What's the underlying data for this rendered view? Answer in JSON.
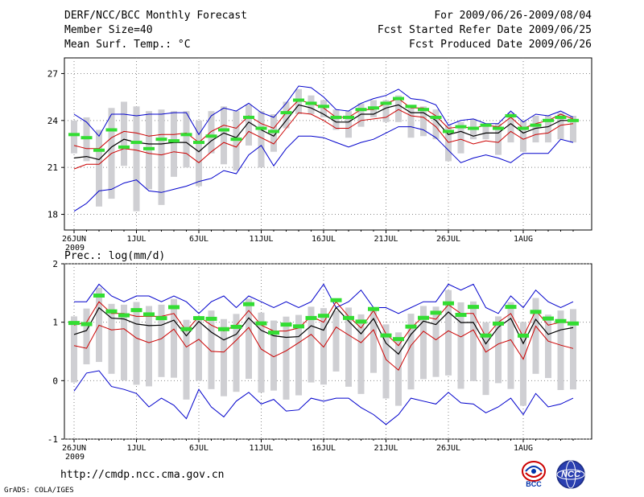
{
  "header": {
    "title": "DERF/NCC/BCC Monthly Forecast",
    "member_size": "Member Size=40",
    "variable_temp": "Mean Surf. Temp.: °C",
    "period": "For 2009/06/26-2009/08/04",
    "started": "Fcst Started Refer Date 2009/06/25",
    "produced": "Fcst Produced Date 2009/06/26"
  },
  "footer": {
    "url": "http://cmdp.ncc.cma.gov.cn",
    "credit": "GrADS: COLA/IGES",
    "logo_left": "BCC",
    "logo_right": "NCC"
  },
  "colors": {
    "ensemble_mean": "#000000",
    "spread_band": "#cc0000",
    "extremes": "#0000cc",
    "box": "#cfcfd3",
    "green_marker": "#33dd33"
  },
  "chart_data": [
    {
      "type": "line",
      "title": "Mean Surf. Temp.: °C",
      "x_ticks": [
        "26JUN",
        "1JUL",
        "6JUL",
        "11JUL",
        "16JUL",
        "21JUL",
        "26JUL",
        "1AUG"
      ],
      "x_tick_index": [
        0,
        5,
        10,
        15,
        20,
        25,
        30,
        36
      ],
      "x_sublabel": "2009",
      "ylim": [
        17,
        28
      ],
      "y_ticks": [
        18,
        21,
        24,
        27
      ],
      "series": [
        {
          "name": "max",
          "values": [
            18.2,
            18.7,
            19.5,
            19.6,
            20.0,
            20.2,
            19.5,
            19.4,
            19.6,
            19.8,
            20.1,
            20.3,
            20.8,
            20.6,
            21.8,
            22.4,
            21.1,
            22.2,
            23.0,
            23.0,
            22.9,
            22.6,
            22.3,
            22.6,
            22.8,
            23.2,
            23.6,
            23.6,
            23.4,
            22.9,
            22.1,
            21.3,
            21.6,
            21.8,
            21.6,
            21.3,
            21.9,
            21.9,
            21.9,
            22.8,
            22.6
          ]
        },
        {
          "name": "min",
          "values": [
            24.4,
            23.9,
            23.0,
            24.4,
            24.4,
            24.3,
            24.4,
            24.4,
            24.5,
            24.5,
            23.1,
            24.3,
            24.8,
            24.6,
            25.1,
            24.5,
            24.2,
            25.1,
            26.2,
            26.1,
            25.5,
            24.7,
            24.6,
            25.1,
            25.4,
            25.6,
            26.0,
            25.4,
            25.3,
            25.0,
            23.7,
            24.0,
            24.1,
            23.8,
            23.8,
            24.6,
            23.9,
            24.4,
            24.3,
            24.6,
            24.2
          ]
        }
      ],
      "band_upper": [
        22.4,
        22.2,
        22.2,
        22.9,
        23.3,
        23.2,
        23.0,
        23.1,
        23.1,
        23.2,
        22.6,
        23.3,
        23.7,
        23.5,
        24.3,
        23.8,
        23.5,
        24.5,
        25.3,
        25.1,
        24.8,
        24.2,
        24.2,
        24.7,
        24.7,
        25.1,
        25.4,
        24.8,
        24.8,
        24.3,
        23.5,
        23.6,
        23.5,
        23.7,
        23.6,
        24.2,
        23.5,
        23.8,
        24.0,
        24.4,
        24.1
      ],
      "band_lower": [
        20.9,
        21.2,
        21.2,
        21.9,
        22.2,
        22.1,
        21.9,
        21.8,
        22.0,
        21.9,
        21.3,
        22.0,
        22.6,
        22.3,
        23.3,
        22.9,
        22.5,
        23.5,
        24.5,
        24.4,
        24.0,
        23.5,
        23.5,
        24.0,
        24.1,
        24.2,
        24.7,
        24.3,
        24.2,
        23.6,
        22.6,
        22.8,
        22.5,
        22.7,
        22.6,
        23.3,
        22.8,
        23.1,
        23.2,
        23.7,
        23.8
      ],
      "mean": [
        21.6,
        21.7,
        21.5,
        22.3,
        22.8,
        22.6,
        22.5,
        22.5,
        22.6,
        22.6,
        22.0,
        22.7,
        23.2,
        22.9,
        23.9,
        23.4,
        23.0,
        24.0,
        25.0,
        24.8,
        24.4,
        23.9,
        23.9,
        24.4,
        24.4,
        24.8,
        25.0,
        24.5,
        24.5,
        24.0,
        23.1,
        23.3,
        23.0,
        23.2,
        23.2,
        23.8,
        23.2,
        23.5,
        23.6,
        24.0,
        24.0
      ],
      "box_top": [
        24.0,
        24.2,
        23.4,
        24.8,
        25.2,
        24.9,
        24.6,
        24.7,
        24.6,
        24.6,
        24.0,
        24.6,
        24.9,
        24.6,
        25.0,
        24.6,
        24.4,
        25.2,
        26.0,
        25.6,
        25.3,
        24.7,
        24.6,
        25.1,
        25.3,
        25.3,
        25.6,
        24.9,
        24.9,
        24.7,
        23.7,
        23.9,
        24.1,
        23.8,
        23.8,
        24.5,
        24.0,
        24.3,
        24.3,
        24.5,
        24.3
      ],
      "box_bottom": [
        21.9,
        21.4,
        18.5,
        19.0,
        21.1,
        18.2,
        19.6,
        18.6,
        20.4,
        21.0,
        19.8,
        21.9,
        21.2,
        20.8,
        22.4,
        21.0,
        22.0,
        23.5,
        24.4,
        24.4,
        24.2,
        23.4,
        22.9,
        23.6,
        24.2,
        23.9,
        23.9,
        22.9,
        23.0,
        22.8,
        21.4,
        21.9,
        22.8,
        22.8,
        21.8,
        22.6,
        22.0,
        22.6,
        22.6,
        22.8,
        22.6
      ],
      "marker": [
        23.1,
        22.9,
        22.1,
        23.4,
        22.3,
        22.6,
        22.2,
        22.8,
        22.7,
        23.1,
        22.6,
        23.0,
        23.4,
        22.8,
        24.2,
        23.5,
        23.3,
        24.5,
        25.3,
        25.1,
        24.9,
        24.2,
        24.2,
        24.7,
        24.8,
        25.1,
        25.4,
        24.9,
        24.7,
        24.2,
        23.3,
        23.6,
        23.5,
        23.7,
        23.5,
        24.3,
        23.5,
        23.7,
        24.0,
        24.2,
        24.0
      ]
    },
    {
      "type": "line",
      "title": "Prec.: log(mm/d)",
      "x_ticks": [
        "26JUN",
        "1JUL",
        "6JUL",
        "11JUL",
        "16JUL",
        "21JUL",
        "26JUL",
        "1AUG"
      ],
      "x_tick_index": [
        0,
        5,
        10,
        15,
        20,
        25,
        30,
        36
      ],
      "x_sublabel": "2009",
      "ylim": [
        -1,
        2
      ],
      "y_ticks": [
        -1,
        0,
        1,
        2
      ],
      "series": [
        {
          "name": "max",
          "values": [
            1.35,
            1.35,
            1.65,
            1.45,
            1.35,
            1.45,
            1.45,
            1.35,
            1.45,
            1.35,
            1.15,
            1.35,
            1.45,
            1.25,
            1.45,
            1.35,
            1.25,
            1.35,
            1.25,
            1.35,
            1.65,
            1.25,
            1.35,
            1.55,
            1.25,
            1.25,
            1.15,
            1.25,
            1.35,
            1.35,
            1.65,
            1.55,
            1.65,
            1.25,
            1.15,
            1.45,
            1.25,
            1.55,
            1.35,
            1.25,
            1.35
          ]
        },
        {
          "name": "min",
          "values": [
            -0.18,
            0.13,
            0.17,
            -0.1,
            -0.15,
            -0.22,
            -0.45,
            -0.3,
            -0.42,
            -0.65,
            -0.15,
            -0.45,
            -0.62,
            -0.35,
            -0.2,
            -0.4,
            -0.32,
            -0.52,
            -0.5,
            -0.3,
            -0.35,
            -0.3,
            -0.3,
            -0.46,
            -0.58,
            -0.75,
            -0.58,
            -0.3,
            -0.35,
            -0.4,
            -0.2,
            -0.38,
            -0.4,
            -0.55,
            -0.45,
            -0.3,
            -0.58,
            -0.22,
            -0.45,
            -0.4,
            -0.3
          ]
        }
      ],
      "band_upper": [
        0.95,
        1.0,
        1.35,
        1.15,
        1.15,
        1.1,
        1.1,
        1.1,
        1.15,
        0.85,
        1.1,
        0.95,
        0.85,
        0.95,
        1.2,
        0.95,
        0.85,
        0.85,
        0.9,
        1.1,
        1.0,
        1.35,
        1.1,
        0.9,
        1.2,
        0.8,
        0.6,
        0.9,
        1.1,
        1.05,
        1.3,
        1.15,
        1.15,
        0.75,
        1.0,
        1.15,
        0.75,
        1.2,
        0.95,
        1.0,
        1.0
      ]
    }
  ]
}
